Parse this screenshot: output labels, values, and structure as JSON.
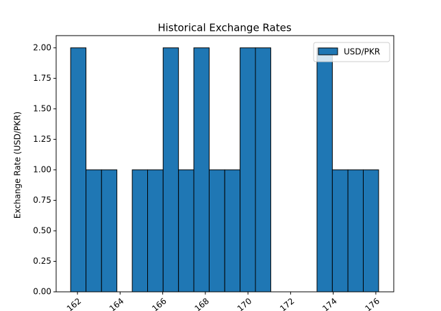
{
  "chart_data": {
    "type": "histogram",
    "title": "Historical Exchange Rates",
    "y_label": "Exchange Rate (USD/PKR)",
    "bins": [
      161.68,
      162.4,
      163.13,
      163.85,
      164.57,
      165.29,
      166.02,
      166.74,
      167.46,
      168.18,
      168.91,
      169.63,
      170.35,
      171.07,
      171.8,
      172.52,
      173.24,
      173.96,
      174.69,
      175.41,
      176.13
    ],
    "series": [
      {
        "name": "USD/PKR",
        "color": "#1f77b4",
        "values": [
          2,
          1,
          1,
          0,
          1,
          1,
          2,
          1,
          2,
          1,
          1,
          2,
          2,
          0,
          0,
          0,
          2,
          1,
          1,
          1
        ]
      }
    ],
    "xlim": [
      161.0,
      176.84
    ],
    "ylim": [
      0,
      2.1
    ],
    "xticks": [
      162,
      164,
      166,
      168,
      170,
      172,
      174,
      176
    ],
    "yticks": [
      {
        "value": 0,
        "label": "0.00"
      },
      {
        "value": 0.25,
        "label": "0.25"
      },
      {
        "value": 0.5,
        "label": "0.50"
      },
      {
        "value": 0.75,
        "label": "0.75"
      },
      {
        "value": 1,
        "label": "1.00"
      },
      {
        "value": 1.25,
        "label": "1.25"
      },
      {
        "value": 1.5,
        "label": "1.50"
      },
      {
        "value": 1.75,
        "label": "1.75"
      },
      {
        "value": 2,
        "label": "2.00"
      }
    ],
    "legend": "upper right"
  }
}
